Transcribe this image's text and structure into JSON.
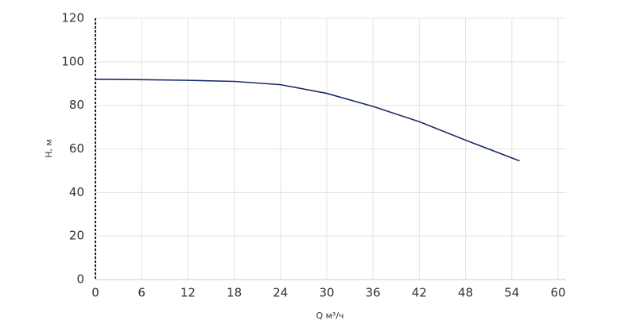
{
  "chart_data": {
    "type": "line",
    "x_label": "Q м³/ч",
    "y_label": "H, м",
    "x": [
      0,
      6,
      12,
      18,
      24,
      30,
      36,
      42,
      48,
      55
    ],
    "series": [
      {
        "color": "#1b2a6b",
        "values": [
          92,
          91.8,
          91.5,
          91,
          89.5,
          85.5,
          79.5,
          72.5,
          64,
          54.5
        ]
      }
    ],
    "xlim": [
      0,
      60
    ],
    "xticks": [
      0,
      6,
      12,
      18,
      24,
      30,
      36,
      42,
      48,
      54,
      60
    ],
    "ylim": [
      0,
      120
    ],
    "yticks": [
      0,
      20,
      40,
      60,
      80,
      100,
      120
    ],
    "grid": true
  }
}
